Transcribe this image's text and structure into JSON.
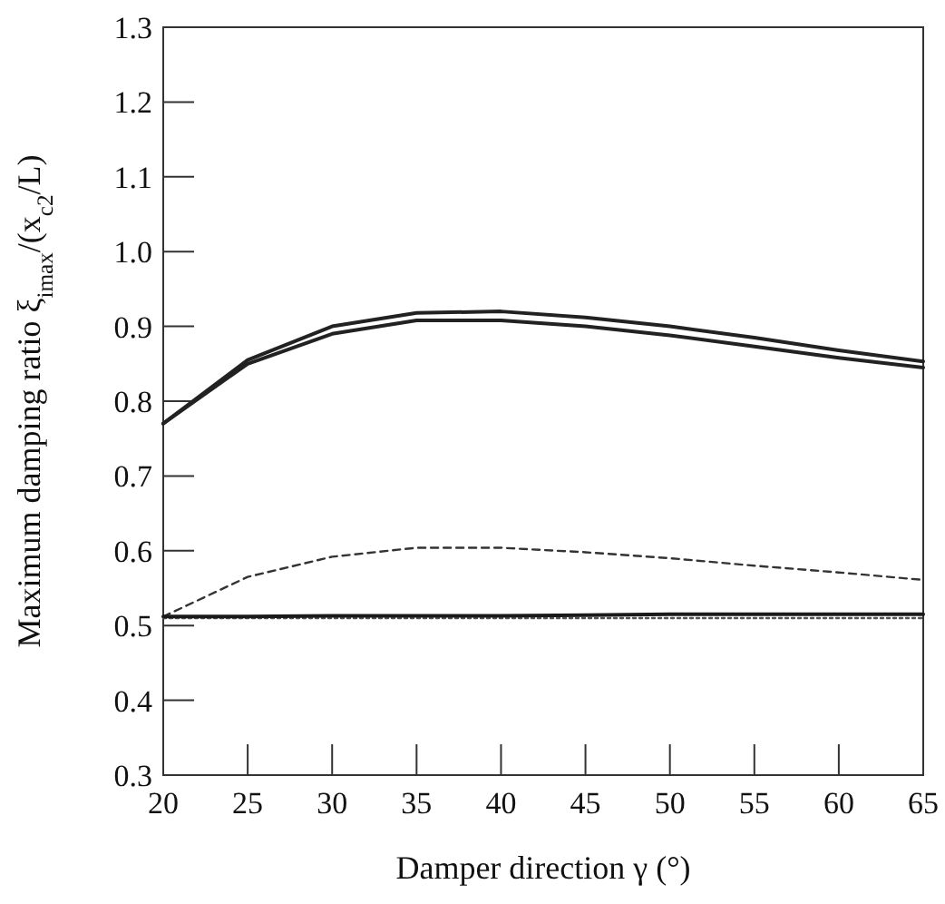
{
  "chart_data": {
    "type": "line",
    "xlabel": "Damper direction γ (°)",
    "ylabel": "Maximum damping ratio ξ$_{imax}$/(x$_{c2}$/L)",
    "x": [
      20,
      25,
      30,
      35,
      40,
      45,
      50,
      55,
      60,
      65
    ],
    "xlim": [
      20,
      65
    ],
    "xticks": [
      20,
      25,
      30,
      35,
      40,
      45,
      50,
      55,
      60,
      65
    ],
    "ylim": [
      0.3,
      1.3
    ],
    "yticks": [
      {
        "value": 0.3,
        "label": "0.3"
      },
      {
        "value": 0.4,
        "label": "0.4"
      },
      {
        "value": 0.5,
        "label": "0.5"
      },
      {
        "value": 0.6,
        "label": "0.6"
      },
      {
        "value": 0.7,
        "label": "0.7"
      },
      {
        "value": 0.8,
        "label": "0.8"
      },
      {
        "value": 0.9,
        "label": "0.9"
      },
      {
        "value": 1.0,
        "label": "1.0"
      },
      {
        "value": 1.1,
        "label": "1.1"
      },
      {
        "value": 1.2,
        "label": "1.2"
      },
      {
        "value": 1.3,
        "label": "1.3"
      }
    ],
    "marker": "none",
    "series": [
      {
        "color": "#222222",
        "line_style": "solid",
        "values": [
          0.77,
          0.855,
          0.9,
          0.918,
          0.92,
          0.912,
          0.9,
          0.885,
          0.868,
          0.853
        ]
      },
      {
        "color": "#222222",
        "line_style": "solid",
        "values": [
          0.77,
          0.85,
          0.89,
          0.908,
          0.908,
          0.9,
          0.888,
          0.873,
          0.858,
          0.845
        ]
      },
      {
        "color": "#333333",
        "line_style": "dashed",
        "values": [
          0.512,
          0.565,
          0.592,
          0.604,
          0.604,
          0.598,
          0.59,
          0.58,
          0.571,
          0.561
        ]
      },
      {
        "color": "#555555",
        "line_style": "dotted",
        "values": [
          0.51,
          0.51,
          0.51,
          0.51,
          0.51,
          0.51,
          0.51,
          0.51,
          0.51,
          0.51
        ]
      },
      {
        "color": "#1a1a1a",
        "line_style": "solid",
        "values": [
          0.512,
          0.512,
          0.513,
          0.513,
          0.513,
          0.514,
          0.515,
          0.515,
          0.515,
          0.515
        ]
      }
    ]
  }
}
